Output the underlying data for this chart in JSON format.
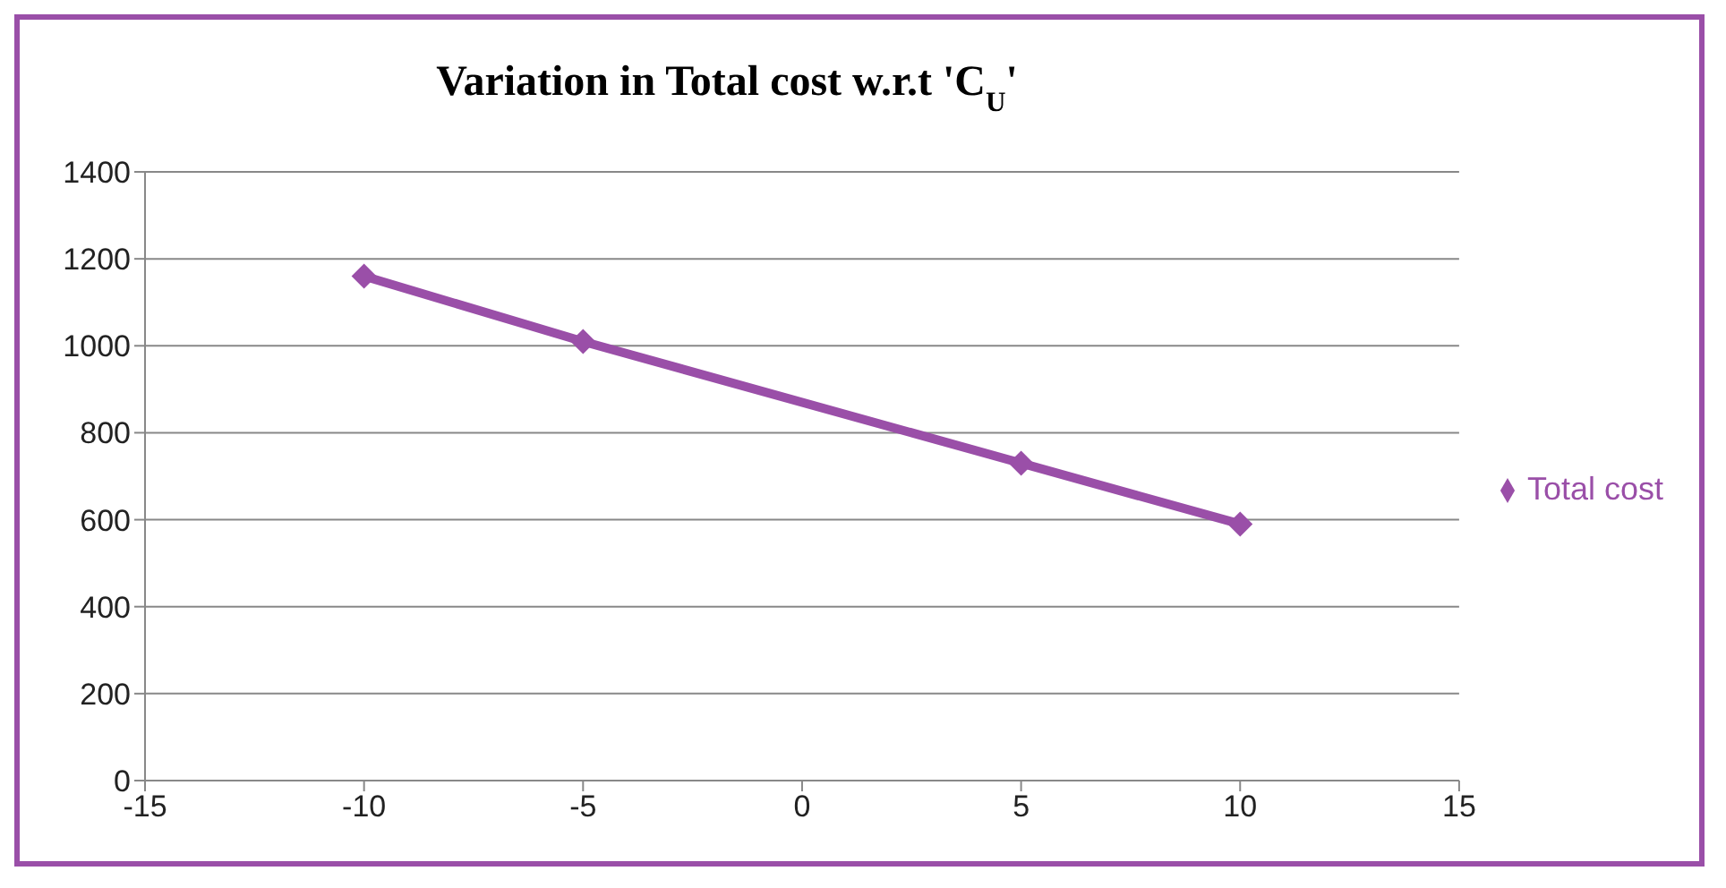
{
  "chart_data": {
    "type": "line",
    "title": "Variation in Total cost w.r.t 'C$_{U}$'",
    "x": [
      -10,
      -5,
      5,
      10
    ],
    "series": [
      {
        "name": "Total cost",
        "color": "#9a4fa8",
        "values": [
          1160,
          1010,
          730,
          590
        ]
      }
    ],
    "xlim": [
      -15,
      15
    ],
    "xticks": [
      -15,
      -10,
      -5,
      0,
      5,
      10,
      15
    ],
    "ylim": [
      0,
      1400
    ],
    "yticks": [
      0,
      200,
      400,
      600,
      800,
      1000,
      1200,
      1400
    ],
    "grid": "y",
    "legend": "right",
    "marker": "diamond",
    "line_style": "solid"
  }
}
